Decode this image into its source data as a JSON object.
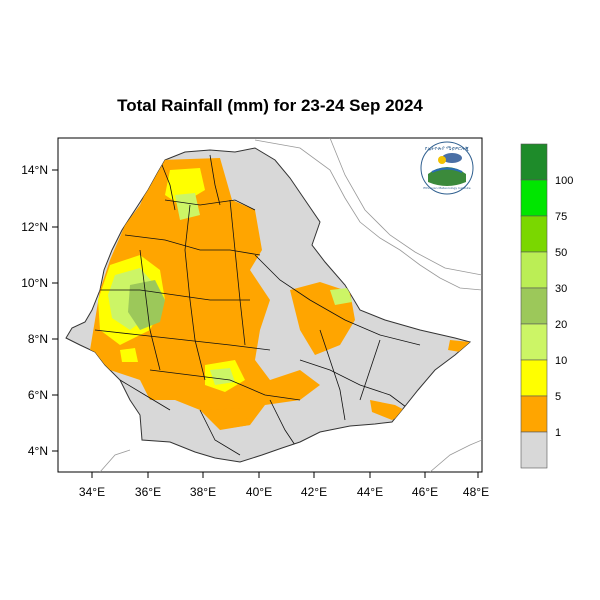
{
  "title": "Total Rainfall (mm) for 23-24 Sep 2024",
  "axes": {
    "x_ticks": [
      "34°E",
      "36°E",
      "38°E",
      "40°E",
      "42°E",
      "44°E",
      "46°E",
      "48°E"
    ],
    "y_ticks": [
      "14°N",
      "12°N",
      "10°N",
      "8°N",
      "6°N",
      "4°N"
    ]
  },
  "legend": {
    "labels": [
      "100",
      "75",
      "50",
      "30",
      "20",
      "10",
      "5",
      "1"
    ],
    "colors": [
      "#1e8b2a",
      "#00e600",
      "#7ad700",
      "#bbee55",
      "#9cc85a",
      "#ccf566",
      "#ffff00",
      "#ffa500",
      "#d8d8d8"
    ]
  },
  "logo": {
    "text_top": "የኢትዮጵያ ሜቲዎሮሎጂ ኢንስቲትዩት",
    "text_bottom": "Ethiopian Meteorology Institute"
  },
  "colors": {
    "country": "#d8d8d8",
    "rain_orange": "#ffa500",
    "rain_yellow": "#ffff00",
    "rain_lightgreen": "#ccf566",
    "rain_green": "#9cc85a"
  }
}
